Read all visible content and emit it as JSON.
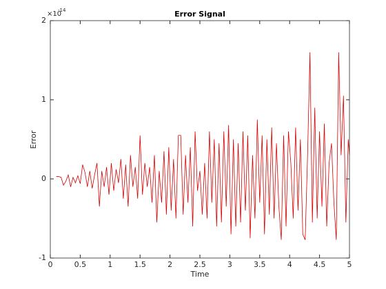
{
  "chart_data": {
    "type": "line",
    "title": "Error Signal",
    "x_label": "Time",
    "y_label": "Error",
    "y_multiplier": {
      "base": "×10",
      "exponent": "-14"
    },
    "xlim": [
      0,
      5
    ],
    "xticks": [
      0,
      0.5,
      1,
      1.5,
      2,
      2.5,
      3,
      3.5,
      4,
      4.5,
      5
    ],
    "ylim": [
      -1,
      2
    ],
    "yticks": [
      -1,
      0,
      1,
      2
    ],
    "grid": false,
    "series": [
      {
        "color": "#d40000",
        "x": [
          0.1,
          0.14,
          0.18,
          0.22,
          0.26,
          0.3,
          0.34,
          0.38,
          0.42,
          0.46,
          0.5,
          0.54,
          0.58,
          0.62,
          0.66,
          0.7,
          0.74,
          0.78,
          0.82,
          0.86,
          0.9,
          0.94,
          0.98,
          1.02,
          1.06,
          1.1,
          1.14,
          1.18,
          1.22,
          1.26,
          1.3,
          1.34,
          1.38,
          1.42,
          1.46,
          1.5,
          1.54,
          1.58,
          1.62,
          1.66,
          1.7,
          1.74,
          1.78,
          1.82,
          1.86,
          1.9,
          1.94,
          1.98,
          2.02,
          2.06,
          2.1,
          2.14,
          2.18,
          2.22,
          2.26,
          2.3,
          2.34,
          2.38,
          2.42,
          2.46,
          2.5,
          2.54,
          2.58,
          2.62,
          2.66,
          2.7,
          2.74,
          2.78,
          2.82,
          2.86,
          2.9,
          2.94,
          2.98,
          3.02,
          3.06,
          3.1,
          3.14,
          3.18,
          3.22,
          3.26,
          3.3,
          3.34,
          3.38,
          3.42,
          3.46,
          3.5,
          3.54,
          3.58,
          3.62,
          3.66,
          3.7,
          3.74,
          3.78,
          3.82,
          3.86,
          3.9,
          3.94,
          3.98,
          4.02,
          4.06,
          4.1,
          4.14,
          4.18,
          4.22,
          4.26,
          4.3,
          4.34,
          4.38,
          4.42,
          4.46,
          4.5,
          4.54,
          4.58,
          4.62,
          4.66,
          4.7,
          4.74,
          4.78,
          4.82,
          4.86,
          4.9,
          4.94,
          4.98,
          5
        ],
        "values": [
          0.03,
          0.03,
          0.02,
          -0.08,
          -0.03,
          0.05,
          -0.1,
          0.02,
          -0.05,
          0.04,
          -0.06,
          0.18,
          0.08,
          -0.1,
          0.1,
          -0.12,
          0.05,
          0.2,
          -0.35,
          0.1,
          -0.1,
          0.15,
          -0.2,
          0.2,
          -0.15,
          0.12,
          -0.05,
          0.25,
          -0.25,
          0.18,
          -0.35,
          0.3,
          -0.1,
          0.15,
          -0.25,
          0.55,
          -0.2,
          0.2,
          -0.1,
          0.15,
          -0.3,
          0.3,
          -0.55,
          0.1,
          -0.3,
          0.35,
          -0.45,
          0.4,
          -0.4,
          0.25,
          -0.5,
          0.55,
          0.55,
          -0.45,
          0.3,
          -0.3,
          0.4,
          -0.6,
          0.6,
          -0.15,
          0.1,
          -0.45,
          0.2,
          -0.5,
          0.6,
          -0.3,
          0.5,
          -0.6,
          0.45,
          -0.55,
          0.6,
          -0.35,
          0.68,
          -0.7,
          0.5,
          -0.6,
          0.45,
          -0.55,
          0.6,
          -0.4,
          0.55,
          -0.75,
          0.3,
          -0.5,
          0.75,
          -0.3,
          0.55,
          -0.7,
          0.5,
          -0.45,
          0.65,
          -0.5,
          0.45,
          -0.35,
          -0.77,
          0.55,
          -0.6,
          0.6,
          0.2,
          -0.5,
          0.65,
          -0.4,
          0.5,
          -0.7,
          -0.77,
          0.3,
          1.6,
          -0.55,
          0.9,
          -0.5,
          0.6,
          -0.35,
          0.7,
          -0.6,
          0.2,
          0.45,
          -0.3,
          -0.77,
          1.6,
          0.3,
          1.05,
          -0.55,
          0.5,
          0.3
        ]
      }
    ]
  }
}
